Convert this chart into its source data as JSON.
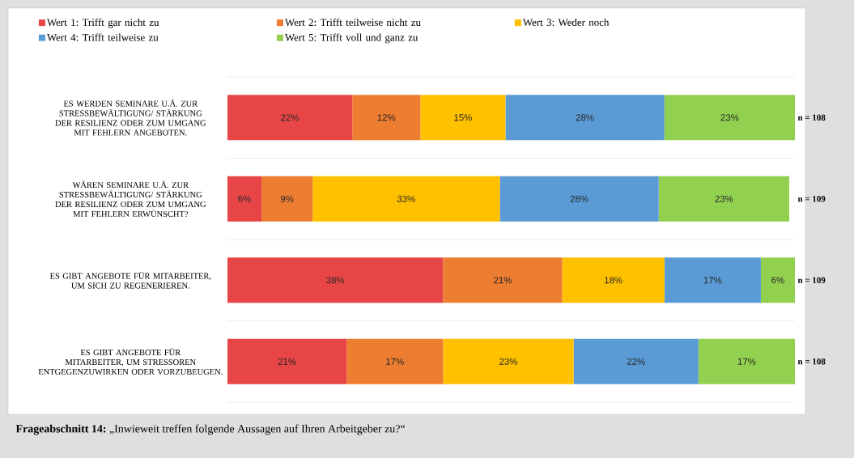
{
  "chart_data": {
    "type": "bar",
    "orientation": "horizontal",
    "stacked": true,
    "categories": [
      "ES WERDEN SEMINARE U.Ä. ZUR STRESSBEWÄLTIGUNG/ STÄRKUNG DER RESILIENZ ODER ZUM UMGANG MIT FEHLERN ANGEBOTEN.",
      "WÄREN SEMINARE U.Ä. ZUR STRESSBEWÄLTIGUNG/ STÄRKUNG DER RESILIENZ ODER ZUM UMGANG MIT FEHLERN ERWÜNSCHT?",
      "ES GIBT ANGEBOTE FÜR MITARBEITER, UM SICH ZU REGENERIEREN.",
      "ES GIBT ANGEBOTE FÜR MITARBEITER, UM STRESSOREN ENTGEGENZUWIRKEN ODER VORZUBEUGEN."
    ],
    "tick_labels": "y",
    "grid": "y",
    "legend": "top",
    "series": [
      {
        "name": "Wert 1: Trifft gar nicht zu",
        "color": "#e84646",
        "values": [
          22,
          6,
          38,
          21
        ],
        "value_labels": [
          "22%",
          "6%",
          "38%",
          "21%"
        ]
      },
      {
        "name": "Wert 2: Trifft teilweise nicht zu",
        "color": "#ed7d31",
        "values": [
          12,
          9,
          21,
          17
        ],
        "value_labels": [
          "12%",
          "9%",
          "21%",
          "17%"
        ]
      },
      {
        "name": "Wert 3: Weder noch",
        "color": "#ffc000",
        "values": [
          15,
          33,
          18,
          23
        ],
        "value_labels": [
          "15%",
          "33%",
          "18%",
          "23%"
        ]
      },
      {
        "name": "Wert 4: Trifft teilweise zu",
        "color": "#5b9bd5",
        "values": [
          28,
          28,
          17,
          22
        ],
        "value_labels": [
          "28%",
          "28%",
          "17%",
          "22%"
        ]
      },
      {
        "name": "Wert 5: Trifft voll und ganz zu",
        "color": "#92d050",
        "values": [
          23,
          23,
          6,
          17
        ],
        "value_labels": [
          "23%",
          "23%",
          "6%",
          "17%"
        ]
      }
    ],
    "annotations": [
      "n = 108",
      "n = 109",
      "n = 109",
      "n = 108",
      "**Frageabschnitt 14:** „Inwieweit treffen folgende Aussagen auf Ihren Arbeitgeber zu?“"
    ]
  }
}
